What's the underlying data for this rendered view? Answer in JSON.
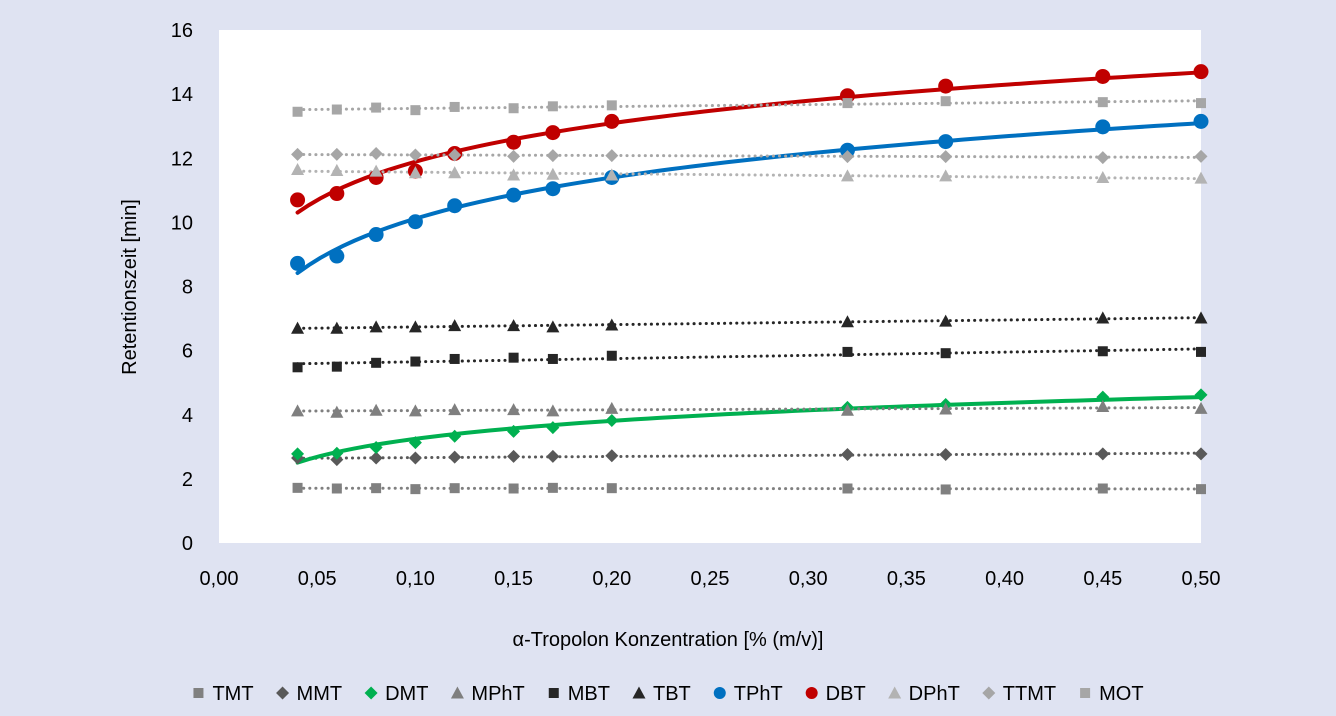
{
  "chart_data": {
    "type": "scatter",
    "title": "",
    "xlabel": "α-Tropolon Konzentration [% (m/v)]",
    "ylabel": "Retentionszeit [min]",
    "xlim": [
      0,
      0.5
    ],
    "ylim": [
      0,
      16
    ],
    "x_ticks": [
      "0,00",
      "0,05",
      "0,10",
      "0,15",
      "0,20",
      "0,25",
      "0,30",
      "0,35",
      "0,40",
      "0,45",
      "0,50"
    ],
    "y_ticks": [
      "0",
      "2",
      "4",
      "6",
      "8",
      "10",
      "12",
      "14",
      "16"
    ],
    "grid": false,
    "legend_position": "bottom",
    "x": [
      0.04,
      0.06,
      0.08,
      0.1,
      0.12,
      0.15,
      0.17,
      0.2,
      0.32,
      0.37,
      0.45,
      0.5
    ],
    "series": [
      {
        "name": "TMT",
        "marker": "square",
        "color": "#808080",
        "trendline": "linear",
        "line_color": "#808080",
        "line_style": "dotted",
        "values": [
          1.72,
          1.7,
          1.71,
          1.68,
          1.71,
          1.7,
          1.72,
          1.71,
          1.7,
          1.67,
          1.7,
          1.68
        ]
      },
      {
        "name": "MMT",
        "marker": "diamond",
        "color": "#595959",
        "trendline": "linear",
        "line_color": "#595959",
        "line_style": "dotted",
        "values": [
          2.65,
          2.6,
          2.65,
          2.65,
          2.68,
          2.7,
          2.7,
          2.72,
          2.76,
          2.76,
          2.78,
          2.78
        ]
      },
      {
        "name": "DMT",
        "marker": "diamond",
        "color": "#00b050",
        "trendline": "logarithmic",
        "line_color": "#00b050",
        "line_style": "solid",
        "values": [
          2.78,
          2.8,
          2.98,
          3.13,
          3.33,
          3.48,
          3.6,
          3.82,
          4.23,
          4.32,
          4.55,
          4.62
        ]
      },
      {
        "name": "MPhT",
        "marker": "triangle",
        "color": "#7f7f7f",
        "trendline": "linear",
        "line_color": "#7f7f7f",
        "line_style": "dotted",
        "values": [
          4.12,
          4.08,
          4.14,
          4.12,
          4.16,
          4.16,
          4.12,
          4.2,
          4.14,
          4.18,
          4.26,
          4.2
        ]
      },
      {
        "name": "MBT",
        "marker": "square",
        "color": "#262626",
        "trendline": "linear",
        "line_color": "#262626",
        "line_style": "dotted",
        "values": [
          5.48,
          5.5,
          5.62,
          5.66,
          5.74,
          5.78,
          5.74,
          5.84,
          5.96,
          5.92,
          5.98,
          5.96
        ]
      },
      {
        "name": "TBT",
        "marker": "triangle",
        "color": "#262626",
        "trendline": "linear",
        "line_color": "#262626",
        "line_style": "dotted",
        "values": [
          6.7,
          6.7,
          6.74,
          6.74,
          6.78,
          6.78,
          6.74,
          6.8,
          6.9,
          6.92,
          7.02,
          7.02
        ]
      },
      {
        "name": "TPhT",
        "marker": "circle",
        "color": "#0070c0",
        "trendline": "logarithmic",
        "line_color": "#0070c0",
        "line_style": "solid",
        "values": [
          8.72,
          8.95,
          9.62,
          10.02,
          10.52,
          10.85,
          11.05,
          11.4,
          12.25,
          12.52,
          12.98,
          13.15
        ]
      },
      {
        "name": "DBT",
        "marker": "circle",
        "color": "#c00000",
        "trendline": "logarithmic",
        "line_color": "#c00000",
        "line_style": "solid",
        "values": [
          10.7,
          10.9,
          11.4,
          11.6,
          12.15,
          12.5,
          12.8,
          13.15,
          13.95,
          14.25,
          14.55,
          14.7
        ]
      },
      {
        "name": "DPhT",
        "marker": "triangle",
        "color": "#b3b3b3",
        "trendline": "linear",
        "line_color": "#b3b3b3",
        "line_style": "dotted",
        "values": [
          11.65,
          11.62,
          11.6,
          11.55,
          11.55,
          11.48,
          11.5,
          11.48,
          11.45,
          11.45,
          11.4,
          11.38
        ]
      },
      {
        "name": "TTMT",
        "marker": "diamond",
        "color": "#a6a6a6",
        "trendline": "linear",
        "line_color": "#a6a6a6",
        "line_style": "dotted",
        "values": [
          12.12,
          12.12,
          12.15,
          12.1,
          12.1,
          12.06,
          12.08,
          12.08,
          12.05,
          12.05,
          12.02,
          12.06
        ]
      },
      {
        "name": "MOT",
        "marker": "square",
        "color": "#a6a6a6",
        "trendline": "linear",
        "line_color": "#a6a6a6",
        "line_style": "dotted",
        "values": [
          13.45,
          13.52,
          13.58,
          13.5,
          13.6,
          13.56,
          13.62,
          13.65,
          13.72,
          13.78,
          13.75,
          13.72
        ]
      }
    ]
  }
}
